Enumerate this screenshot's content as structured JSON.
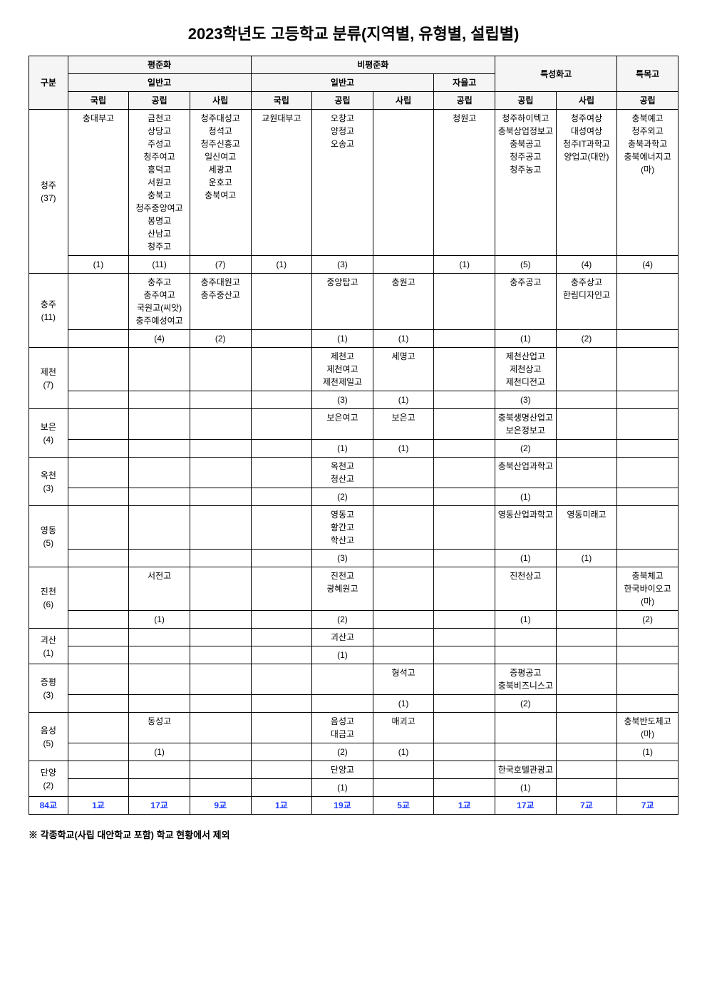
{
  "title": "2023학년도 고등학교 분류(지역별, 유형별, 설립별)",
  "footnote": "※ 각종학교(사립 대안학교 포함) 학교 현황에서 제외",
  "headers": {
    "region": "구분",
    "group1": "평준화",
    "group2": "비평준화",
    "group3": "특성화고",
    "group4": "특목고",
    "sub_general": "일반고",
    "sub_auto": "자율고",
    "col_national": "국립",
    "col_public": "공립",
    "col_private": "사립"
  },
  "rows": [
    {
      "region": "청주\n(37)",
      "c0": {
        "list": "충대부고",
        "count": "(1)"
      },
      "c1": {
        "list": "금천고\n상당고\n주성고\n청주여고\n흥덕고\n서원고\n충북고\n청주중앙여고\n봉명고\n산남고\n청주고",
        "count": "(11)"
      },
      "c2": {
        "list": "청주대성고\n청석고\n청주신흥고\n일신여고\n세광고\n운호고\n충북여고",
        "count": "(7)"
      },
      "c3": {
        "list": "교원대부고",
        "count": "(1)"
      },
      "c4": {
        "list": "오창고\n양청고\n오송고",
        "count": "(3)"
      },
      "c5": {
        "list": "",
        "count": ""
      },
      "c6": {
        "list": "청원고",
        "count": "(1)"
      },
      "c7": {
        "list": "청주하이텍고\n충북상업정보고\n충북공고\n청주공고\n청주농고",
        "count": "(5)"
      },
      "c8": {
        "list": "청주여상\n대성여상\n청주IT과학고\n양업고(대안)",
        "count": "(4)"
      },
      "c9": {
        "list": "충북예고\n청주외고\n충북과학고\n충북에너지고(마)",
        "count": "(4)"
      }
    },
    {
      "region": "충주\n(11)",
      "c0": {
        "list": "",
        "count": ""
      },
      "c1": {
        "list": "충주고\n충주여고\n국원고(씨앗)\n충주예성여고",
        "count": "(4)"
      },
      "c2": {
        "list": "충주대원고\n충주중산고",
        "count": "(2)"
      },
      "c3": {
        "list": "",
        "count": ""
      },
      "c4": {
        "list": "중앙탑고",
        "count": "(1)"
      },
      "c5": {
        "list": "충원고",
        "count": "(1)"
      },
      "c6": {
        "list": "",
        "count": ""
      },
      "c7": {
        "list": "충주공고",
        "count": "(1)"
      },
      "c8": {
        "list": "충주상고\n한림디자인고",
        "count": "(2)"
      },
      "c9": {
        "list": "",
        "count": ""
      }
    },
    {
      "region": "제천\n(7)",
      "c0": {
        "list": "",
        "count": ""
      },
      "c1": {
        "list": "",
        "count": ""
      },
      "c2": {
        "list": "",
        "count": ""
      },
      "c3": {
        "list": "",
        "count": ""
      },
      "c4": {
        "list": "제천고\n제천여고\n제천제일고",
        "count": "(3)"
      },
      "c5": {
        "list": "세명고",
        "count": "(1)"
      },
      "c6": {
        "list": "",
        "count": ""
      },
      "c7": {
        "list": "제천산업고\n제천상고\n제천디전고",
        "count": "(3)"
      },
      "c8": {
        "list": "",
        "count": ""
      },
      "c9": {
        "list": "",
        "count": ""
      }
    },
    {
      "region": "보은\n(4)",
      "c0": {
        "list": "",
        "count": ""
      },
      "c1": {
        "list": "",
        "count": ""
      },
      "c2": {
        "list": "",
        "count": ""
      },
      "c3": {
        "list": "",
        "count": ""
      },
      "c4": {
        "list": "보은여고",
        "count": "(1)"
      },
      "c5": {
        "list": "보은고",
        "count": "(1)"
      },
      "c6": {
        "list": "",
        "count": ""
      },
      "c7": {
        "list": "충북생명산업고\n보은정보고",
        "count": "(2)"
      },
      "c8": {
        "list": "",
        "count": ""
      },
      "c9": {
        "list": "",
        "count": ""
      }
    },
    {
      "region": "옥천\n(3)",
      "c0": {
        "list": "",
        "count": ""
      },
      "c1": {
        "list": "",
        "count": ""
      },
      "c2": {
        "list": "",
        "count": ""
      },
      "c3": {
        "list": "",
        "count": ""
      },
      "c4": {
        "list": "옥천고\n청산고",
        "count": "(2)"
      },
      "c5": {
        "list": "",
        "count": ""
      },
      "c6": {
        "list": "",
        "count": ""
      },
      "c7": {
        "list": "충북산업과학고",
        "count": "(1)"
      },
      "c8": {
        "list": "",
        "count": ""
      },
      "c9": {
        "list": "",
        "count": ""
      }
    },
    {
      "region": "영동\n(5)",
      "c0": {
        "list": "",
        "count": ""
      },
      "c1": {
        "list": "",
        "count": ""
      },
      "c2": {
        "list": "",
        "count": ""
      },
      "c3": {
        "list": "",
        "count": ""
      },
      "c4": {
        "list": "영동고\n황간고\n학산고",
        "count": "(3)"
      },
      "c5": {
        "list": "",
        "count": ""
      },
      "c6": {
        "list": "",
        "count": ""
      },
      "c7": {
        "list": "영동산업과학고",
        "count": "(1)"
      },
      "c8": {
        "list": "영동미래고",
        "count": "(1)"
      },
      "c9": {
        "list": "",
        "count": ""
      }
    },
    {
      "region": "진천\n(6)",
      "c0": {
        "list": "",
        "count": ""
      },
      "c1": {
        "list": "서전고",
        "count": "(1)"
      },
      "c2": {
        "list": "",
        "count": ""
      },
      "c3": {
        "list": "",
        "count": ""
      },
      "c4": {
        "list": "진천고\n광혜원고",
        "count": "(2)"
      },
      "c5": {
        "list": "",
        "count": ""
      },
      "c6": {
        "list": "",
        "count": ""
      },
      "c7": {
        "list": "진천상고",
        "count": "(1)"
      },
      "c8": {
        "list": "",
        "count": ""
      },
      "c9": {
        "list": "충북체고\n한국바이오고(마)",
        "count": "(2)"
      }
    },
    {
      "region": "괴산\n(1)",
      "c0": {
        "list": "",
        "count": ""
      },
      "c1": {
        "list": "",
        "count": ""
      },
      "c2": {
        "list": "",
        "count": ""
      },
      "c3": {
        "list": "",
        "count": ""
      },
      "c4": {
        "list": "괴산고",
        "count": "(1)"
      },
      "c5": {
        "list": "",
        "count": ""
      },
      "c6": {
        "list": "",
        "count": ""
      },
      "c7": {
        "list": "",
        "count": ""
      },
      "c8": {
        "list": "",
        "count": ""
      },
      "c9": {
        "list": "",
        "count": ""
      }
    },
    {
      "region": "증평\n(3)",
      "c0": {
        "list": "",
        "count": ""
      },
      "c1": {
        "list": "",
        "count": ""
      },
      "c2": {
        "list": "",
        "count": ""
      },
      "c3": {
        "list": "",
        "count": ""
      },
      "c4": {
        "list": "",
        "count": ""
      },
      "c5": {
        "list": "형석고",
        "count": "(1)"
      },
      "c6": {
        "list": "",
        "count": ""
      },
      "c7": {
        "list": "증평공고\n충북비즈니스고",
        "count": "(2)"
      },
      "c8": {
        "list": "",
        "count": ""
      },
      "c9": {
        "list": "",
        "count": ""
      }
    },
    {
      "region": "음성\n(5)",
      "c0": {
        "list": "",
        "count": ""
      },
      "c1": {
        "list": "동성고",
        "count": "(1)"
      },
      "c2": {
        "list": "",
        "count": ""
      },
      "c3": {
        "list": "",
        "count": ""
      },
      "c4": {
        "list": "음성고\n대금고",
        "count": "(2)"
      },
      "c5": {
        "list": "매괴고",
        "count": "(1)"
      },
      "c6": {
        "list": "",
        "count": ""
      },
      "c7": {
        "list": "",
        "count": ""
      },
      "c8": {
        "list": "",
        "count": ""
      },
      "c9": {
        "list": "충북반도체고(마)",
        "count": "(1)"
      }
    },
    {
      "region": "단양\n(2)",
      "c0": {
        "list": "",
        "count": ""
      },
      "c1": {
        "list": "",
        "count": ""
      },
      "c2": {
        "list": "",
        "count": ""
      },
      "c3": {
        "list": "",
        "count": ""
      },
      "c4": {
        "list": "단양고",
        "count": "(1)"
      },
      "c5": {
        "list": "",
        "count": ""
      },
      "c6": {
        "list": "",
        "count": ""
      },
      "c7": {
        "list": "한국호텔관광고",
        "count": "(1)"
      },
      "c8": {
        "list": "",
        "count": ""
      },
      "c9": {
        "list": "",
        "count": ""
      }
    }
  ],
  "totals": {
    "region": "84교",
    "c0": "1교",
    "c1": "17교",
    "c2": "9교",
    "c3": "1교",
    "c4": "19교",
    "c5": "5교",
    "c6": "1교",
    "c7": "17교",
    "c8": "7교",
    "c9": "7교"
  }
}
